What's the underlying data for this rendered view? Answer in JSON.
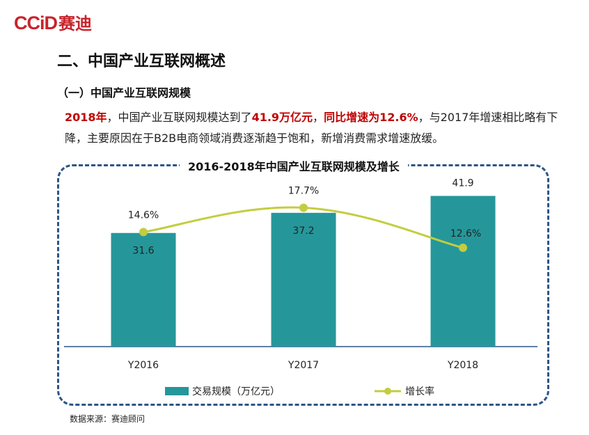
{
  "logo": {
    "en": "CCiD",
    "cn": "赛迪"
  },
  "section_title": "二、中国产业互联网概述",
  "sub_title": "（一）中国产业互联网规模",
  "paragraph": {
    "p1": "2018年",
    "p2": "，中国产业互联网规模达到了",
    "p3": "41.9万亿元",
    "p4": "，",
    "p5": "同比增速为12.6%",
    "p6": "，与2017年增速相比略有下降，主要原因在于B2B电商领域消费逐渐趋于饱和，新增消费需求增速放缓。"
  },
  "source": "数据来源：赛迪顾问",
  "colors": {
    "bar": "#25979a",
    "line": "#c3cd3f",
    "frame": "#2c5585",
    "highlight": "#c00000"
  },
  "chart_data": {
    "type": "bar",
    "title": "2016-2018年中国产业互联网规模及增长",
    "categories": [
      "Y2016",
      "Y2017",
      "Y2018"
    ],
    "series": [
      {
        "name": "交易规模（万亿元）",
        "type": "bar",
        "values": [
          31.6,
          37.2,
          41.9
        ],
        "labels": [
          "31.6",
          "37.2",
          "41.9"
        ]
      },
      {
        "name": "增长率",
        "type": "line",
        "values": [
          14.6,
          17.7,
          12.6
        ],
        "labels": [
          "14.6%",
          "17.7%",
          "12.6%"
        ]
      }
    ],
    "ylim_bar": [
      0,
      48
    ],
    "ylim_line": [
      0,
      22
    ],
    "grid": false,
    "legend": "bottom"
  }
}
